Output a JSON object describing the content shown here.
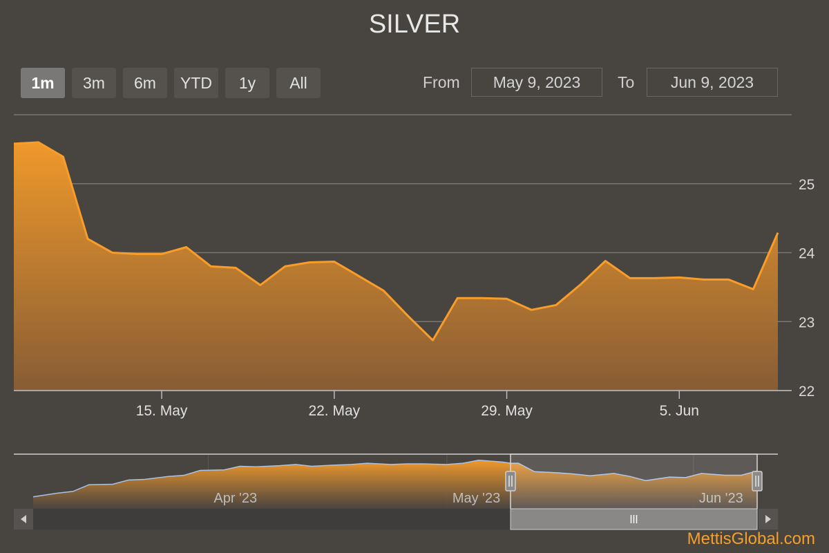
{
  "chart_title": "SILVER",
  "range_selector": {
    "buttons": [
      "1m",
      "3m",
      "6m",
      "YTD",
      "1y",
      "All"
    ],
    "selected": "1m",
    "from_label": "From",
    "from_value": "May 9, 2023",
    "to_label": "To",
    "to_value": "Jun 9, 2023"
  },
  "colors": {
    "background": "#484440",
    "series": "#f89d2a",
    "navigator_line": "#a9c2e8",
    "gridline": "#7a7673"
  },
  "chart_data": {
    "type": "area",
    "title": "SILVER",
    "x_dates": [
      "2023-05-09",
      "2023-05-10",
      "2023-05-11",
      "2023-05-12",
      "2023-05-13",
      "2023-05-14",
      "2023-05-15",
      "2023-05-16",
      "2023-05-17",
      "2023-05-18",
      "2023-05-19",
      "2023-05-20",
      "2023-05-21",
      "2023-05-22",
      "2023-05-23",
      "2023-05-24",
      "2023-05-25",
      "2023-05-26",
      "2023-05-27",
      "2023-05-28",
      "2023-05-29",
      "2023-05-30",
      "2023-05-31",
      "2023-06-01",
      "2023-06-02",
      "2023-06-03",
      "2023-06-04",
      "2023-06-05",
      "2023-06-06",
      "2023-06-07",
      "2023-06-08",
      "2023-06-09"
    ],
    "values": [
      25.58,
      25.6,
      25.39,
      24.2,
      24.0,
      23.98,
      23.98,
      24.08,
      23.8,
      23.78,
      23.53,
      23.8,
      23.86,
      23.87,
      23.66,
      23.45,
      23.08,
      22.73,
      23.34,
      23.34,
      23.33,
      23.17,
      23.24,
      23.54,
      23.88,
      23.63,
      23.63,
      23.64,
      23.61,
      23.61,
      23.47,
      24.29
    ],
    "x_ticks": [
      "15. May",
      "22. May",
      "29. May",
      "5. Jun"
    ],
    "x_tick_dates": [
      "2023-05-15",
      "2023-05-22",
      "2023-05-29",
      "2023-06-05"
    ],
    "y_ticks": [
      22,
      23,
      24,
      25
    ],
    "ylim": [
      22,
      26
    ],
    "y_axis_side": "right",
    "grid": true,
    "legend": "none"
  },
  "navigator": {
    "x_ticks": [
      "Apr '23",
      "May '23",
      "Jun '23"
    ],
    "x_tick_dates": [
      "2023-04-01",
      "2023-05-01",
      "2023-06-01"
    ],
    "x_dates": [
      "2023-03-10",
      "2023-03-13",
      "2023-03-15",
      "2023-03-17",
      "2023-03-20",
      "2023-03-22",
      "2023-03-24",
      "2023-03-27",
      "2023-03-29",
      "2023-03-31",
      "2023-04-03",
      "2023-04-05",
      "2023-04-07",
      "2023-04-10",
      "2023-04-12",
      "2023-04-14",
      "2023-04-17",
      "2023-04-19",
      "2023-04-21",
      "2023-04-24",
      "2023-04-26",
      "2023-04-28",
      "2023-05-01",
      "2023-05-03",
      "2023-05-05",
      "2023-05-08",
      "2023-05-09",
      "2023-05-10",
      "2023-05-12",
      "2023-05-15",
      "2023-05-17",
      "2023-05-19",
      "2023-05-22",
      "2023-05-24",
      "2023-05-26",
      "2023-05-29",
      "2023-05-31",
      "2023-06-02",
      "2023-06-05",
      "2023-06-07",
      "2023-06-09"
    ],
    "values": [
      20.0,
      20.6,
      20.9,
      22.0,
      22.1,
      22.8,
      22.9,
      23.4,
      23.6,
      24.4,
      24.5,
      25.1,
      25.0,
      25.2,
      25.4,
      25.1,
      25.3,
      25.4,
      25.6,
      25.4,
      25.5,
      25.5,
      25.4,
      25.6,
      26.1,
      25.8,
      25.6,
      25.6,
      24.2,
      24.0,
      23.8,
      23.5,
      23.9,
      23.4,
      22.7,
      23.3,
      23.2,
      23.9,
      23.6,
      23.6,
      24.3
    ],
    "window": [
      "2023-05-09",
      "2023-06-09"
    ]
  },
  "credit": "MettisGlobal.com"
}
